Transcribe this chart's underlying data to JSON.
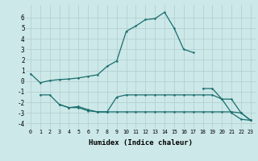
{
  "xlabel": "Humidex (Indice chaleur)",
  "xlim": [
    -0.5,
    23.5
  ],
  "ylim": [
    -4.5,
    7.2
  ],
  "xticks": [
    0,
    1,
    2,
    3,
    4,
    5,
    6,
    7,
    8,
    9,
    10,
    11,
    12,
    13,
    14,
    15,
    16,
    17,
    18,
    19,
    20,
    21,
    22,
    23
  ],
  "yticks": [
    -4,
    -3,
    -2,
    -1,
    0,
    1,
    2,
    3,
    4,
    5,
    6
  ],
  "bg_color": "#cce8e8",
  "line_color": "#1a6e6e",
  "grid_color": "#b0cccc",
  "lines": [
    {
      "x": [
        0,
        1,
        2,
        3,
        4,
        5,
        6,
        7,
        8,
        9,
        10,
        11,
        12,
        13,
        14,
        15,
        16,
        17,
        18,
        19,
        20,
        21,
        22,
        23
      ],
      "y": [
        0.7,
        -0.15,
        0.05,
        0.15,
        0.2,
        0.3,
        0.45,
        0.6,
        1.4,
        1.9,
        4.7,
        5.2,
        5.8,
        5.9,
        6.5,
        5.0,
        3.0,
        2.7,
        null,
        null,
        null,
        null,
        null,
        null
      ]
    },
    {
      "x": [
        18,
        19,
        20,
        21,
        22,
        23
      ],
      "y": [
        -0.7,
        -0.7,
        -1.7,
        -3.0,
        -3.6,
        -3.7
      ]
    },
    {
      "x": [
        1,
        2,
        3,
        4,
        5,
        6,
        7,
        8,
        9,
        10,
        11,
        12,
        13,
        14,
        15,
        16,
        17,
        18,
        19,
        20,
        21,
        22,
        23
      ],
      "y": [
        -1.3,
        -1.3,
        -2.2,
        -2.5,
        -2.5,
        -2.8,
        -2.9,
        -2.9,
        -1.5,
        -1.3,
        -1.3,
        -1.3,
        -1.3,
        -1.3,
        -1.3,
        -1.3,
        -1.3,
        -1.3,
        -1.3,
        -1.7,
        -1.7,
        -3.0,
        -3.7
      ]
    },
    {
      "x": [
        3,
        4,
        5,
        6,
        7,
        8,
        9,
        10,
        11,
        12,
        13,
        14,
        15,
        16,
        17,
        18,
        19,
        20,
        21,
        22,
        23
      ],
      "y": [
        -2.2,
        -2.5,
        -2.4,
        -2.7,
        -2.9,
        -2.9,
        -2.9,
        -2.9,
        -2.9,
        -2.9,
        -2.9,
        -2.9,
        -2.9,
        -2.9,
        -2.9,
        -2.9,
        -2.9,
        -2.9,
        -2.9,
        -3.0,
        -3.7
      ]
    }
  ]
}
